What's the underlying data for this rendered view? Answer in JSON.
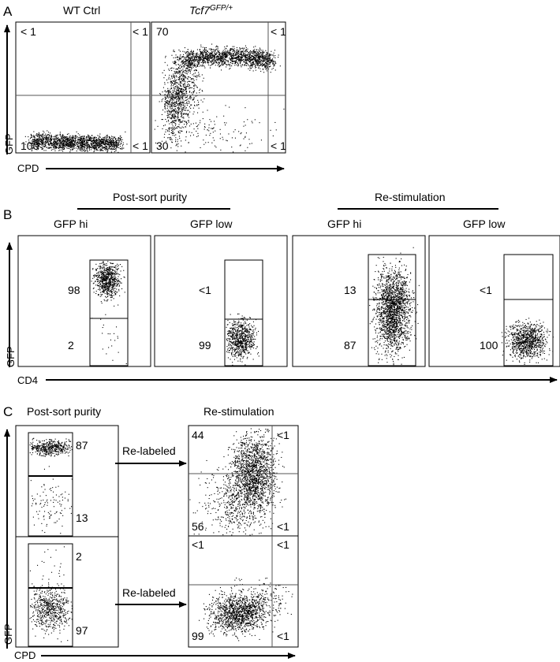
{
  "figure": {
    "panel_letters": [
      "A",
      "B",
      "C"
    ]
  },
  "panel_a": {
    "plots": [
      {
        "title": "WT Ctrl",
        "title_italic": false,
        "quadrants": {
          "ul": "< 1",
          "ur": "< 1",
          "ll": "100",
          "lr": "< 1"
        }
      },
      {
        "title": "Tcf7",
        "title_sup": "GFP/+",
        "title_italic": true,
        "quadrants": {
          "ul": "70",
          "ur": "< 1",
          "ll": "30",
          "lr": "< 1"
        }
      }
    ],
    "ylabel": "GFP",
    "xlabel": "CPD"
  },
  "panel_b": {
    "groups": [
      {
        "label": "Post-sort purity",
        "plots": [
          {
            "title": "GFP hi",
            "upper": "98",
            "lower": "2"
          },
          {
            "title": "GFP low",
            "upper": "<1",
            "lower": "99"
          }
        ]
      },
      {
        "label": "Re-stimulation",
        "plots": [
          {
            "title": "GFP hi",
            "upper": "13",
            "lower": "87"
          },
          {
            "title": "GFP low",
            "upper": "<1",
            "lower": "100"
          }
        ]
      }
    ],
    "ylabel": "GFP",
    "xlabel": "CD4"
  },
  "panel_c": {
    "left_header": "Post-sort purity",
    "right_header": "Re-stimulation",
    "rows": [
      {
        "sort": {
          "upper": "87",
          "lower": "13"
        },
        "arrow_label": "Re-labeled",
        "restim": {
          "ul": "44",
          "ur": "<1",
          "ll": "56",
          "lr": "<1"
        }
      },
      {
        "sort": {
          "upper": "2",
          "lower": "97"
        },
        "arrow_label": "Re-labeled",
        "restim": {
          "ul": "<1",
          "ur": "<1",
          "ll": "99",
          "lr": "<1"
        }
      }
    ],
    "ylabel": "GFP",
    "xlabel": "CPD"
  },
  "chart_data": [
    {
      "type": "scatter",
      "title": "WT Ctrl",
      "xlabel": "CPD",
      "ylabel": "GFP",
      "quadrant_percentages": {
        "upper_left": "< 1",
        "upper_right": "< 1",
        "lower_left": "100",
        "lower_right": "< 1"
      }
    },
    {
      "type": "scatter",
      "title": "Tcf7 GFP/+",
      "xlabel": "CPD",
      "ylabel": "GFP",
      "quadrant_percentages": {
        "upper_left": "70",
        "upper_right": "< 1",
        "lower_left": "30",
        "lower_right": "< 1"
      }
    },
    {
      "type": "scatter",
      "title": "Post-sort purity, GFP hi",
      "xlabel": "CD4",
      "ylabel": "GFP",
      "gate_percentages": {
        "upper": "98",
        "lower": "2"
      }
    },
    {
      "type": "scatter",
      "title": "Post-sort purity, GFP low",
      "xlabel": "CD4",
      "ylabel": "GFP",
      "gate_percentages": {
        "upper": "<1",
        "lower": "99"
      }
    },
    {
      "type": "scatter",
      "title": "Re-stimulation, GFP hi",
      "xlabel": "CD4",
      "ylabel": "GFP",
      "gate_percentages": {
        "upper": "13",
        "lower": "87"
      }
    },
    {
      "type": "scatter",
      "title": "Re-stimulation, GFP low",
      "xlabel": "CD4",
      "ylabel": "GFP",
      "gate_percentages": {
        "upper": "<1",
        "lower": "100"
      }
    },
    {
      "type": "scatter",
      "title": "Post-sort purity",
      "xlabel": "CPD",
      "ylabel": "GFP",
      "gate_percentages": {
        "upper": "87",
        "lower": "13"
      }
    },
    {
      "type": "scatter",
      "title": "Re-stimulation (from GFP hi)",
      "xlabel": "CPD",
      "ylabel": "GFP",
      "quadrant_percentages": {
        "upper_left": "44",
        "upper_right": "<1",
        "lower_left": "56",
        "lower_right": "<1"
      }
    },
    {
      "type": "scatter",
      "title": "Post-sort purity",
      "xlabel": "CPD",
      "ylabel": "GFP",
      "gate_percentages": {
        "upper": "2",
        "lower": "97"
      }
    },
    {
      "type": "scatter",
      "title": "Re-stimulation (from GFP low)",
      "xlabel": "CPD",
      "ylabel": "GFP",
      "quadrant_percentages": {
        "upper_left": "<1",
        "upper_right": "<1",
        "lower_left": "99",
        "lower_right": "<1"
      }
    }
  ]
}
